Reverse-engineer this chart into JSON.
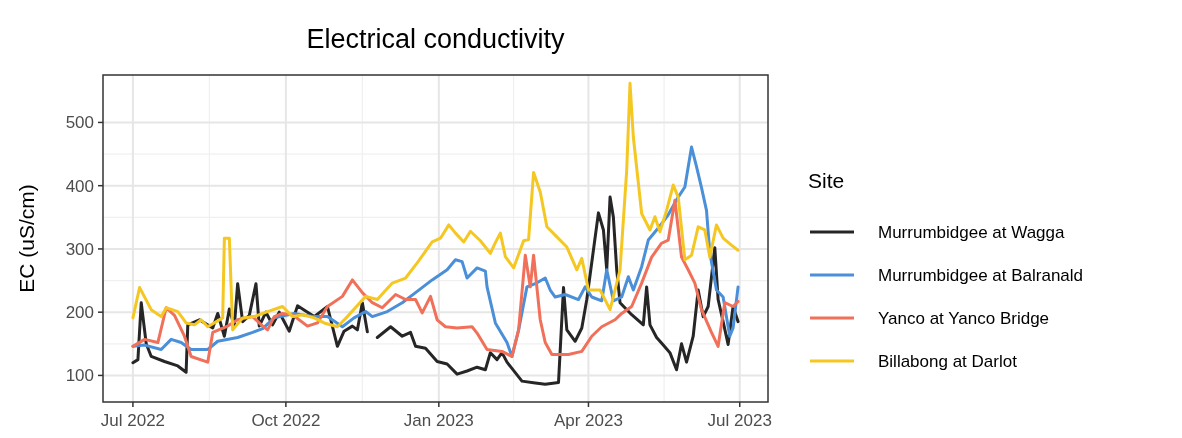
{
  "chart_data": {
    "type": "line",
    "title": "Electrical conductivity",
    "ylabel": "EC (uS/cm)",
    "legend_title": "Site",
    "legend": "right",
    "grid": true,
    "line_style": "solid",
    "xlim": [
      "2022-06-13",
      "2023-07-18"
    ],
    "xticks": [
      {
        "value": "2022-07-01",
        "label": "Jul 2022"
      },
      {
        "value": "2022-10-01",
        "label": "Oct 2022"
      },
      {
        "value": "2023-01-01",
        "label": "Jan 2023"
      },
      {
        "value": "2023-04-01",
        "label": "Apr 2023"
      },
      {
        "value": "2023-07-01",
        "label": "Jul 2023"
      }
    ],
    "ylim": [
      58,
      575
    ],
    "yticks": [
      100,
      200,
      300,
      400,
      500
    ],
    "series": [
      {
        "name": "Murrumbidgee at Wagga",
        "color": "#262626",
        "x": [
          "2022-07-01",
          "2022-07-04",
          "2022-07-06",
          "2022-07-09",
          "2022-07-12",
          "2022-07-20",
          "2022-07-28",
          "2022-08-02",
          "2022-08-03",
          "2022-08-10",
          "2022-08-18",
          "2022-08-21",
          "2022-08-25",
          "2022-08-28",
          "2022-08-31",
          "2022-09-02",
          "2022-09-05",
          "2022-09-09",
          "2022-09-13",
          "2022-09-15",
          "2022-09-19",
          "2022-09-23",
          "2022-09-27",
          "2022-10-03",
          "2022-10-08",
          "2022-10-18",
          "2022-10-26",
          "2022-11-01",
          "2022-11-05",
          "2022-11-10",
          "2022-11-13",
          "2022-11-16",
          "2022-11-19",
          "2022-11-22",
          "2022-11-25",
          "2022-12-03",
          "2022-12-10",
          "2022-12-15",
          "2022-12-18",
          "2022-12-24",
          "2022-12-31",
          "2023-01-06",
          "2023-01-12",
          "2023-01-18",
          "2023-01-24",
          "2023-01-29",
          "2023-02-01",
          "2023-02-05",
          "2023-02-08",
          "2023-02-11",
          "2023-02-20",
          "2023-02-28",
          "2023-03-06",
          "2023-03-14",
          "2023-03-17",
          "2023-03-19",
          "2023-03-24",
          "2023-03-28",
          "2023-03-31",
          "2023-04-07",
          "2023-04-10",
          "2023-04-12",
          "2023-04-14",
          "2023-04-16",
          "2023-04-18",
          "2023-04-20",
          "2023-04-27",
          "2023-05-04",
          "2023-05-06",
          "2023-05-08",
          "2023-05-12",
          "2023-05-16",
          "2023-05-20",
          "2023-05-24",
          "2023-05-27",
          "2023-05-30",
          "2023-06-03",
          "2023-06-06",
          "2023-06-09",
          "2023-06-12",
          "2023-06-16",
          "2023-06-18",
          "2023-06-21",
          "2023-06-24",
          "2023-06-27",
          "2023-06-30"
        ],
        "values": [
          120,
          125,
          215,
          150,
          130,
          122,
          115,
          105,
          180,
          188,
          175,
          198,
          162,
          205,
          178,
          245,
          185,
          195,
          245,
          178,
          200,
          180,
          200,
          170,
          210,
          193,
          209,
          146,
          170,
          178,
          172,
          215,
          169,
          null,
          160,
          177,
          162,
          168,
          146,
          143,
          122,
          118,
          102,
          107,
          113,
          109,
          136,
          125,
          136,
          121,
          91,
          88,
          86,
          89,
          239,
          172,
          154,
          175,
          220,
          357,
          330,
          267,
          382,
          350,
          267,
          215,
          196,
          180,
          240,
          180,
          160,
          148,
          136,
          109,
          150,
          121,
          162,
          235,
          193,
          209,
          302,
          220,
          185,
          149,
          209,
          185
        ]
      },
      {
        "name": "Murrumbidgee at Balranald",
        "color": "#4a8fd8",
        "x": [
          "2022-07-01",
          "2022-07-08",
          "2022-07-18",
          "2022-07-24",
          "2022-07-30",
          "2022-08-05",
          "2022-08-15",
          "2022-08-21",
          "2022-09-02",
          "2022-09-11",
          "2022-09-17",
          "2022-09-24",
          "2022-10-06",
          "2022-10-18",
          "2022-10-26",
          "2022-11-04",
          "2022-11-11",
          "2022-11-18",
          "2022-11-22",
          "2022-12-01",
          "2022-12-10",
          "2022-12-18",
          "2022-12-28",
          "2023-01-06",
          "2023-01-11",
          "2023-01-15",
          "2023-01-18",
          "2023-01-24",
          "2023-01-29",
          "2023-01-30",
          "2023-02-04",
          "2023-02-11",
          "2023-02-14",
          "2023-02-18",
          "2023-02-23",
          "2023-02-28",
          "2023-03-06",
          "2023-03-09",
          "2023-03-12",
          "2023-03-18",
          "2023-03-26",
          "2023-03-30",
          "2023-04-03",
          "2023-04-09",
          "2023-04-12",
          "2023-04-16",
          "2023-04-21",
          "2023-04-25",
          "2023-04-28",
          "2023-05-03",
          "2023-05-07",
          "2023-05-13",
          "2023-05-19",
          "2023-05-25",
          "2023-05-29",
          "2023-06-02",
          "2023-06-05",
          "2023-06-08",
          "2023-06-11",
          "2023-06-13",
          "2023-06-17",
          "2023-06-21",
          "2023-06-25",
          "2023-06-27",
          "2023-06-30"
        ],
        "values": [
          146,
          148,
          141,
          157,
          152,
          141,
          141,
          154,
          160,
          168,
          174,
          191,
          198,
          193,
          193,
          177,
          191,
          201,
          193,
          201,
          215,
          231,
          251,
          267,
          283,
          280,
          254,
          270,
          265,
          240,
          183,
          152,
          130,
          172,
          240,
          245,
          254,
          235,
          224,
          228,
          220,
          240,
          224,
          218,
          267,
          218,
          224,
          256,
          235,
          272,
          314,
          333,
          354,
          382,
          398,
          461,
          430,
          397,
          361,
          294,
          235,
          224,
          162,
          175,
          240
        ]
      },
      {
        "name": "Yanco at Yanco Bridge",
        "color": "#f0705a",
        "x": [
          "2022-07-01",
          "2022-07-08",
          "2022-07-16",
          "2022-07-21",
          "2022-07-26",
          "2022-08-01",
          "2022-08-05",
          "2022-08-15",
          "2022-08-18",
          "2022-08-27",
          "2022-09-02",
          "2022-09-11",
          "2022-09-17",
          "2022-09-20",
          "2022-09-24",
          "2022-09-29",
          "2022-10-05",
          "2022-10-14",
          "2022-10-20",
          "2022-10-26",
          "2022-11-04",
          "2022-11-10",
          "2022-11-16",
          "2022-11-22",
          "2022-11-28",
          "2022-12-06",
          "2022-12-12",
          "2022-12-18",
          "2022-12-22",
          "2022-12-27",
          "2022-12-31",
          "2023-01-05",
          "2023-01-12",
          "2023-01-21",
          "2023-01-24",
          "2023-01-30",
          "2023-02-08",
          "2023-02-14",
          "2023-02-18",
          "2023-02-22",
          "2023-02-25",
          "2023-02-27",
          "2023-03-03",
          "2023-03-06",
          "2023-03-10",
          "2023-03-20",
          "2023-03-28",
          "2023-04-03",
          "2023-04-09",
          "2023-04-17",
          "2023-04-21",
          "2023-04-27",
          "2023-05-03",
          "2023-05-09",
          "2023-05-15",
          "2023-05-19",
          "2023-05-23",
          "2023-05-27",
          "2023-05-31",
          "2023-06-04",
          "2023-06-08",
          "2023-06-14",
          "2023-06-18",
          "2023-06-22",
          "2023-06-27",
          "2023-06-30"
        ],
        "values": [
          146,
          157,
          152,
          207,
          195,
          162,
          130,
          121,
          168,
          178,
          188,
          193,
          178,
          172,
          193,
          198,
          196,
          178,
          183,
          209,
          225,
          251,
          231,
          215,
          207,
          228,
          220,
          220,
          199,
          225,
          188,
          177,
          175,
          177,
          167,
          141,
          138,
          130,
          172,
          290,
          240,
          290,
          188,
          152,
          133,
          133,
          138,
          162,
          177,
          188,
          198,
          209,
          246,
          287,
          309,
          314,
          377,
          287,
          267,
          246,
          204,
          168,
          146,
          215,
          209,
          217
        ]
      },
      {
        "name": "Billabong at Darlot",
        "color": "#f5c722",
        "x": [
          "2022-07-01",
          "2022-07-05",
          "2022-07-12",
          "2022-07-18",
          "2022-07-21",
          "2022-07-28",
          "2022-08-02",
          "2022-08-07",
          "2022-08-11",
          "2022-08-15",
          "2022-08-24",
          "2022-08-25",
          "2022-08-28",
          "2022-08-30",
          "2022-09-05",
          "2022-09-12",
          "2022-09-20",
          "2022-09-29",
          "2022-10-05",
          "2022-10-11",
          "2022-10-18",
          "2022-10-24",
          "2022-11-01",
          "2022-11-07",
          "2022-11-18",
          "2022-11-25",
          "2022-12-04",
          "2022-12-12",
          "2022-12-19",
          "2022-12-28",
          "2023-01-02",
          "2023-01-07",
          "2023-01-11",
          "2023-01-16",
          "2023-01-20",
          "2023-01-26",
          "2023-02-01",
          "2023-02-04",
          "2023-02-07",
          "2023-02-10",
          "2023-02-15",
          "2023-02-21",
          "2023-02-24",
          "2023-02-27",
          "2023-03-03",
          "2023-03-07",
          "2023-03-13",
          "2023-03-19",
          "2023-03-25",
          "2023-03-28",
          "2023-04-01",
          "2023-04-08",
          "2023-04-14",
          "2023-04-20",
          "2023-04-24",
          "2023-04-26",
          "2023-04-28",
          "2023-05-03",
          "2023-05-08",
          "2023-05-11",
          "2023-05-14",
          "2023-05-18",
          "2023-05-22",
          "2023-05-25",
          "2023-05-29",
          "2023-06-02",
          "2023-06-06",
          "2023-06-10",
          "2023-06-13",
          "2023-06-17",
          "2023-06-21",
          "2023-06-26",
          "2023-06-30"
        ],
        "values": [
          191,
          239,
          204,
          193,
          207,
          201,
          183,
          180,
          188,
          177,
          191,
          317,
          317,
          172,
          191,
          193,
          201,
          209,
          193,
          196,
          191,
          183,
          177,
          193,
          225,
          220,
          246,
          254,
          278,
          311,
          317,
          338,
          325,
          311,
          328,
          313,
          293,
          310,
          325,
          288,
          270,
          313,
          315,
          421,
          390,
          335,
          319,
          303,
          267,
          285,
          235,
          235,
          204,
          267,
          424,
          562,
          477,
          356,
          330,
          351,
          327,
          361,
          401,
          382,
          283,
          290,
          335,
          330,
          287,
          338,
          317,
          306,
          298
        ]
      }
    ]
  }
}
